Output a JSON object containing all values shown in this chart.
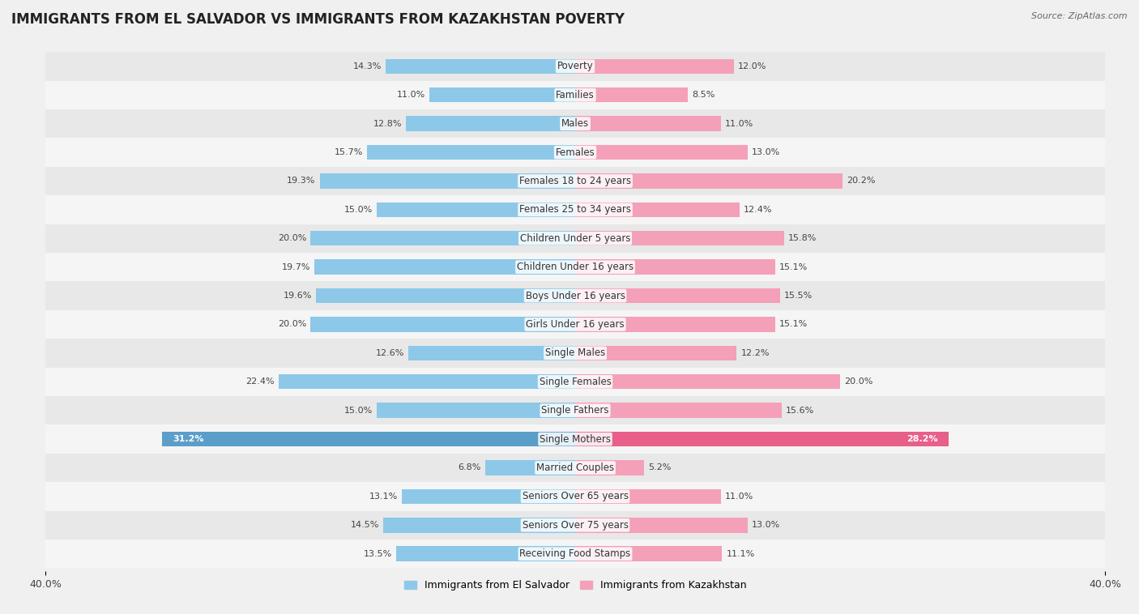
{
  "title": "IMMIGRANTS FROM EL SALVADOR VS IMMIGRANTS FROM KAZAKHSTAN POVERTY",
  "source": "Source: ZipAtlas.com",
  "categories": [
    "Poverty",
    "Families",
    "Males",
    "Females",
    "Females 18 to 24 years",
    "Females 25 to 34 years",
    "Children Under 5 years",
    "Children Under 16 years",
    "Boys Under 16 years",
    "Girls Under 16 years",
    "Single Males",
    "Single Females",
    "Single Fathers",
    "Single Mothers",
    "Married Couples",
    "Seniors Over 65 years",
    "Seniors Over 75 years",
    "Receiving Food Stamps"
  ],
  "el_salvador": [
    14.3,
    11.0,
    12.8,
    15.7,
    19.3,
    15.0,
    20.0,
    19.7,
    19.6,
    20.0,
    12.6,
    22.4,
    15.0,
    31.2,
    6.8,
    13.1,
    14.5,
    13.5
  ],
  "kazakhstan": [
    12.0,
    8.5,
    11.0,
    13.0,
    20.2,
    12.4,
    15.8,
    15.1,
    15.5,
    15.1,
    12.2,
    20.0,
    15.6,
    28.2,
    5.2,
    11.0,
    13.0,
    11.1
  ],
  "color_el_salvador": "#8DC8E8",
  "color_kazakhstan": "#F4A0B8",
  "color_el_salvador_highlight": "#5B9EC9",
  "color_kazakhstan_highlight": "#E8608A",
  "axis_max": 40.0,
  "legend_label_el_salvador": "Immigrants from El Salvador",
  "legend_label_kazakhstan": "Immigrants from Kazakhstan",
  "bg_color": "#f0f0f0",
  "row_color_even": "#e8e8e8",
  "row_color_odd": "#f5f5f5",
  "title_fontsize": 12,
  "label_fontsize": 8.5,
  "value_fontsize": 8,
  "axis_label_fontsize": 9
}
